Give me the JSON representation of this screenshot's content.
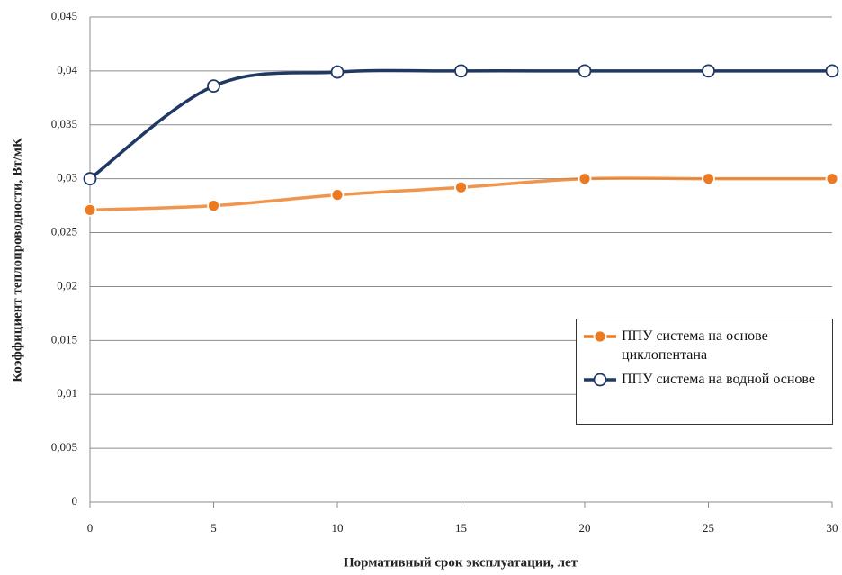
{
  "chart_data": {
    "type": "line",
    "x_label": "Нормативный срок эксплуатации,  лет",
    "y_label": "Коэффициент теплопроводности, Вт/мК",
    "x": [
      0,
      5,
      10,
      15,
      20,
      25,
      30
    ],
    "series": [
      {
        "name": "ППУ система на основе циклопентана",
        "color": "#ec7a22",
        "marker": "filled",
        "values": [
          0.0271,
          0.0275,
          0.0285,
          0.0292,
          0.03,
          0.03,
          0.03
        ]
      },
      {
        "name": "ППУ система на водной основе",
        "color": "#1f3864",
        "marker": "hollow",
        "values": [
          0.03,
          0.0386,
          0.0399,
          0.04,
          0.04,
          0.04,
          0.04
        ]
      }
    ],
    "xlim": [
      0,
      30
    ],
    "xticks": [
      0,
      5,
      10,
      15,
      20,
      25,
      30
    ],
    "ylim": [
      0,
      0.045
    ],
    "yticks": [
      0,
      {
        "value": 0.005,
        "label": "0,005"
      },
      {
        "value": 0.01,
        "label": "0,01"
      },
      {
        "value": 0.015,
        "label": "0,015"
      },
      {
        "value": 0.02,
        "label": "0,02"
      },
      {
        "value": 0.025,
        "label": "0,025"
      },
      {
        "value": 0.03,
        "label": "0,03"
      },
      {
        "value": 0.035,
        "label": "0,035"
      },
      {
        "value": 0.04,
        "label": "0,04"
      },
      {
        "value": 0.045,
        "label": "0,045"
      }
    ],
    "grid": true,
    "smooth": true,
    "legend": "right"
  }
}
